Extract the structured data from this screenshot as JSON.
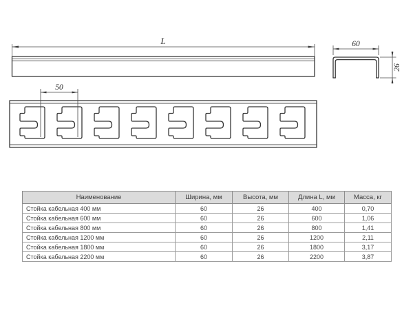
{
  "drawing": {
    "labels": {
      "length": "L",
      "pitch": "50",
      "width": "60",
      "height": "26"
    }
  },
  "table": {
    "headers": [
      "Наименование",
      "Ширина, мм",
      "Высота, мм",
      "Длина L, мм",
      "Масса, кг"
    ],
    "rows": [
      [
        "Стойка кабельная 400 мм",
        "60",
        "26",
        "400",
        "0,70"
      ],
      [
        "Стойка кабельная 600 мм",
        "60",
        "26",
        "600",
        "1,06"
      ],
      [
        "Стойка кабельная 800 мм",
        "60",
        "26",
        "800",
        "1,41"
      ],
      [
        "Стойка кабельная 1200 мм",
        "60",
        "26",
        "1200",
        "2,11"
      ],
      [
        "Стойка кабельная 1800 мм",
        "60",
        "26",
        "1800",
        "3,17"
      ],
      [
        "Стойка кабельная 2200 мм",
        "60",
        "26",
        "2200",
        "3,87"
      ]
    ]
  },
  "colors": {
    "line": "#353535",
    "dimension": "#4a4a4a",
    "table_header_bg": "#dbdbdb",
    "table_border": "#9c9c9c",
    "background": "#ffffff"
  }
}
